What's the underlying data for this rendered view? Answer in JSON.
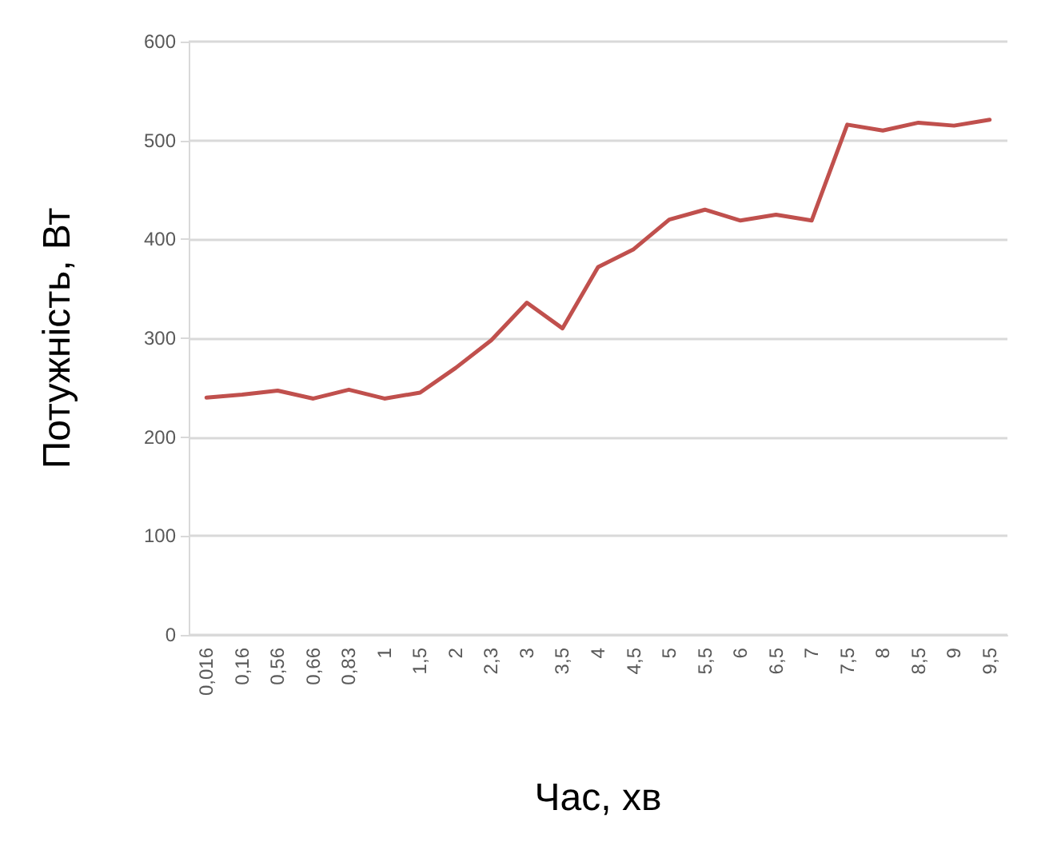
{
  "chart_data": {
    "type": "line",
    "xlabel": "Час, хв",
    "ylabel": "Потужність, Вт",
    "categories": [
      "0,016",
      "0,16",
      "0,56",
      "0,66",
      "0,83",
      "1",
      "1,5",
      "2",
      "2,3",
      "3",
      "3,5",
      "4",
      "4,5",
      "5",
      "5,5",
      "6",
      "6,5",
      "7",
      "7,5",
      "8",
      "8,5",
      "9",
      "9,5"
    ],
    "series": [
      {
        "color": "#c0504d",
        "values": [
          240,
          243,
          247,
          239,
          248,
          239,
          245,
          270,
          298,
          336,
          310,
          372,
          390,
          420,
          430,
          419,
          425,
          419,
          516,
          510,
          518,
          515,
          521
        ]
      }
    ],
    "ylim": [
      0,
      600
    ],
    "yticks": [
      0,
      100,
      200,
      300,
      400,
      500,
      600
    ],
    "grid": "y",
    "marker": "none",
    "line_style": "solid"
  }
}
